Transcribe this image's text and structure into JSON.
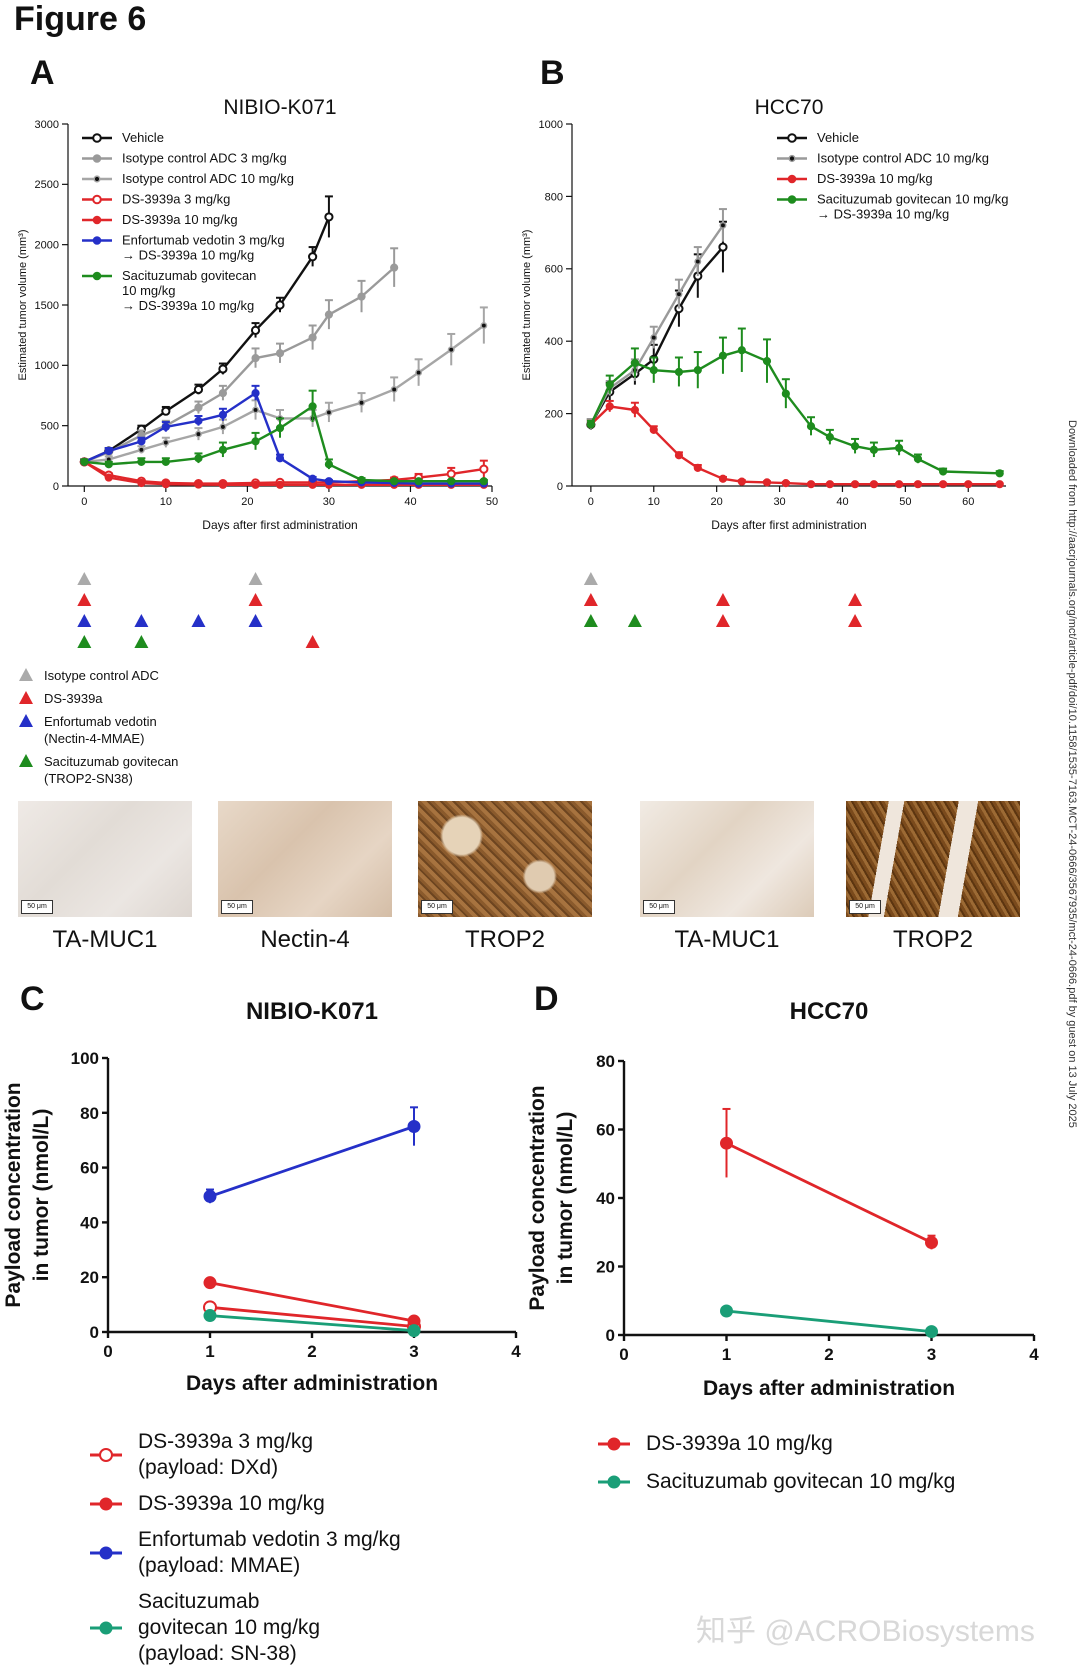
{
  "figure_title": "Figure 6",
  "panel_labels": {
    "a": "A",
    "b": "B",
    "c": "C",
    "d": "D"
  },
  "chart_data": [
    {
      "id": "A",
      "type": "line",
      "title": "NIBIO-K071",
      "xlabel": "Days after first administration",
      "ylabel": "Estimated tumor volume (mm³)",
      "xlim": [
        -2,
        50
      ],
      "ylim": [
        0,
        3000
      ],
      "xticks": [
        0,
        10,
        20,
        30,
        40,
        50
      ],
      "yticks": [
        0,
        500,
        1000,
        1500,
        2000,
        2500,
        3000
      ],
      "series": [
        {
          "name": "Vehicle",
          "color": "#111111",
          "marker": "open",
          "x": [
            0,
            3,
            7,
            10,
            14,
            17,
            21,
            24,
            28,
            30
          ],
          "y": [
            200,
            290,
            470,
            620,
            800,
            970,
            1290,
            1500,
            1900,
            2230
          ],
          "err": [
            20,
            25,
            30,
            35,
            40,
            45,
            60,
            60,
            80,
            170
          ]
        },
        {
          "name": "Isotype control ADC 3 mg/kg",
          "color": "#9a9a9a",
          "marker": "filled",
          "x": [
            0,
            3,
            7,
            10,
            14,
            17,
            21,
            24,
            28,
            30,
            34,
            38
          ],
          "y": [
            200,
            280,
            420,
            500,
            650,
            770,
            1060,
            1100,
            1230,
            1420,
            1570,
            1810
          ],
          "err": [
            20,
            25,
            40,
            40,
            50,
            60,
            80,
            80,
            100,
            120,
            130,
            160
          ]
        },
        {
          "name": "Isotype control ADC 10 mg/kg",
          "color": "#a6a6a6",
          "marker": "dot",
          "x": [
            0,
            3,
            7,
            10,
            14,
            17,
            21,
            24,
            28,
            30,
            34,
            38,
            41,
            45,
            49
          ],
          "y": [
            200,
            220,
            300,
            360,
            430,
            490,
            630,
            560,
            560,
            610,
            690,
            800,
            940,
            1130,
            1330
          ],
          "err": [
            20,
            25,
            30,
            40,
            50,
            60,
            80,
            70,
            70,
            80,
            80,
            100,
            110,
            130,
            150
          ]
        },
        {
          "name": "DS-3939a 3 mg/kg",
          "color": "#e0262a",
          "marker": "open",
          "x": [
            0,
            3,
            7,
            10,
            14,
            17,
            21,
            24,
            28,
            30,
            34,
            38,
            41,
            45,
            49
          ],
          "y": [
            200,
            90,
            40,
            25,
            20,
            20,
            25,
            30,
            30,
            30,
            40,
            50,
            70,
            100,
            140
          ],
          "err": [
            20,
            15,
            10,
            8,
            8,
            8,
            10,
            10,
            10,
            10,
            15,
            20,
            30,
            50,
            70
          ]
        },
        {
          "name": "DS-3939a 10 mg/kg",
          "color": "#e0262a",
          "marker": "filled",
          "x": [
            0,
            3,
            7,
            10,
            14,
            17,
            21,
            24,
            28,
            30,
            34,
            38,
            41,
            45,
            49
          ],
          "y": [
            200,
            70,
            25,
            15,
            12,
            10,
            10,
            10,
            10,
            10,
            10,
            10,
            10,
            10,
            10
          ],
          "err": [
            20,
            12,
            8,
            5,
            5,
            5,
            5,
            5,
            5,
            5,
            5,
            5,
            5,
            5,
            5
          ]
        },
        {
          "name": "Enfortumab vedotin 3 mg/kg → DS-3939a 10 mg/kg",
          "color": "#2530c8",
          "marker": "filled",
          "x": [
            0,
            3,
            7,
            10,
            14,
            17,
            21,
            24,
            28,
            30,
            34,
            38,
            41,
            45,
            49
          ],
          "y": [
            200,
            290,
            370,
            490,
            540,
            590,
            770,
            230,
            60,
            40,
            30,
            25,
            20,
            20,
            20
          ],
          "err": [
            20,
            25,
            30,
            40,
            40,
            50,
            60,
            30,
            15,
            10,
            8,
            8,
            8,
            8,
            8
          ]
        },
        {
          "name": "Sacituzumab govitecan 10 mg/kg → DS-3939a 10 mg/kg",
          "color": "#1e8c1e",
          "marker": "filled",
          "x": [
            0,
            3,
            7,
            10,
            14,
            17,
            21,
            24,
            28,
            30,
            34,
            38,
            41,
            45,
            49
          ],
          "y": [
            200,
            180,
            200,
            200,
            230,
            300,
            370,
            480,
            660,
            180,
            50,
            40,
            40,
            40,
            40
          ],
          "err": [
            20,
            20,
            30,
            30,
            40,
            60,
            70,
            80,
            130,
            40,
            15,
            10,
            10,
            10,
            10
          ]
        }
      ],
      "legend": [
        {
          "text": "Vehicle",
          "color": "#111111",
          "marker": "open"
        },
        {
          "text": "Isotype control ADC 3 mg/kg",
          "color": "#9a9a9a",
          "marker": "filled"
        },
        {
          "text": "Isotype control ADC 10 mg/kg",
          "color": "#a6a6a6",
          "marker": "dot"
        },
        {
          "text": "DS-3939a 3 mg/kg",
          "color": "#e0262a",
          "marker": "open"
        },
        {
          "text": "DS-3939a 10 mg/kg",
          "color": "#e0262a",
          "marker": "filled"
        },
        {
          "text": "Enfortumab vedotin 3 mg/kg",
          "text2": "→ DS-3939a 10 mg/kg",
          "color": "#2530c8",
          "marker": "filled"
        },
        {
          "text": "Sacituzumab govitecan",
          "text2": "10 mg/kg",
          "text3": "→ DS-3939a 10 mg/kg",
          "color": "#1e8c1e",
          "marker": "filled"
        }
      ],
      "dosing_schedule": [
        {
          "agent": "Isotype control ADC",
          "color": "#aaaaaa",
          "days": [
            0,
            21
          ]
        },
        {
          "agent": "DS-3939a",
          "color": "#e0262a",
          "days": [
            0,
            21
          ]
        },
        {
          "agent": "Enfortumab vedotin",
          "color": "#2530c8",
          "days": [
            0,
            7,
            14,
            21
          ]
        },
        {
          "agent": "Sacituzumab govitecan",
          "color": "#1e8c1e",
          "days": [
            0,
            7
          ]
        },
        {
          "agent": "DS-3939a (after SG)",
          "color": "#e0262a",
          "days": [
            28
          ]
        }
      ]
    },
    {
      "id": "B",
      "type": "line",
      "title": "HCC70",
      "xlabel": "Days after first administration",
      "ylabel": "Estimated tumor volume (mm³)",
      "xlim": [
        -3,
        66
      ],
      "ylim": [
        0,
        1000
      ],
      "xticks": [
        0,
        10,
        20,
        30,
        40,
        50,
        60
      ],
      "yticks": [
        0,
        200,
        400,
        600,
        800,
        1000
      ],
      "series": [
        {
          "name": "Vehicle",
          "color": "#111111",
          "marker": "open",
          "x": [
            0,
            3,
            7,
            10,
            14,
            17,
            21
          ],
          "y": [
            170,
            260,
            310,
            350,
            490,
            580,
            660
          ],
          "err": [
            15,
            25,
            30,
            40,
            50,
            60,
            70
          ]
        },
        {
          "name": "Isotype control ADC 10 mg/kg",
          "color": "#9a9a9a",
          "marker": "dot",
          "x": [
            0,
            3,
            7,
            10,
            14,
            17,
            21
          ],
          "y": [
            170,
            270,
            320,
            410,
            530,
            620,
            720
          ],
          "err": [
            15,
            20,
            30,
            30,
            40,
            40,
            45
          ]
        },
        {
          "name": "DS-3939a 10 mg/kg",
          "color": "#e0262a",
          "marker": "filled",
          "x": [
            0,
            3,
            7,
            10,
            14,
            17,
            21,
            24,
            28,
            31,
            35,
            38,
            42,
            45,
            49,
            52,
            56,
            60,
            65
          ],
          "y": [
            170,
            220,
            210,
            155,
            85,
            50,
            20,
            12,
            10,
            8,
            5,
            5,
            5,
            5,
            5,
            5,
            5,
            5,
            5
          ],
          "err": [
            10,
            15,
            20,
            10,
            8,
            8,
            5,
            4,
            3,
            3,
            2,
            2,
            2,
            2,
            2,
            2,
            2,
            2,
            2
          ]
        },
        {
          "name": "Sacituzumab govitecan 10 mg/kg → DS-3939a 10 mg/kg",
          "color": "#1e8c1e",
          "marker": "filled",
          "x": [
            0,
            3,
            7,
            10,
            14,
            17,
            21,
            24,
            28,
            31,
            35,
            38,
            42,
            45,
            49,
            52,
            56,
            65
          ],
          "y": [
            170,
            280,
            340,
            320,
            315,
            320,
            360,
            375,
            345,
            255,
            165,
            135,
            110,
            100,
            105,
            75,
            40,
            35
          ],
          "err": [
            10,
            25,
            40,
            35,
            40,
            50,
            50,
            60,
            60,
            40,
            25,
            20,
            20,
            20,
            20,
            12,
            8,
            6
          ]
        }
      ],
      "legend": [
        {
          "text": "Vehicle",
          "color": "#111111",
          "marker": "open"
        },
        {
          "text": "Isotype control ADC 10 mg/kg",
          "color": "#9a9a9a",
          "marker": "dot"
        },
        {
          "text": "DS-3939a 10 mg/kg",
          "color": "#e0262a",
          "marker": "filled"
        },
        {
          "text": "Sacituzumab govitecan 10 mg/kg",
          "text2": "→ DS-3939a 10 mg/kg",
          "color": "#1e8c1e",
          "marker": "filled"
        }
      ],
      "dosing_schedule": [
        {
          "agent": "Isotype control ADC",
          "color": "#aaaaaa",
          "days": [
            0
          ]
        },
        {
          "agent": "DS-3939a",
          "color": "#e0262a",
          "days": [
            0,
            21,
            42
          ]
        },
        {
          "agent": "Sacituzumab govitecan",
          "color": "#1e8c1e",
          "days": [
            0,
            7
          ]
        },
        {
          "agent": "DS-3939a (after SG)",
          "color": "#e0262a",
          "days": [
            21,
            42
          ]
        }
      ]
    },
    {
      "id": "C",
      "type": "line",
      "title": "NIBIO-K071",
      "xlabel": "Days after administration",
      "ylabel": "Payload concentration",
      "ylabel2": "in tumor (nmol/L)",
      "xlim": [
        0,
        4
      ],
      "ylim": [
        0,
        100
      ],
      "xticks": [
        0,
        1,
        2,
        3,
        4
      ],
      "yticks": [
        0,
        20,
        40,
        60,
        80,
        100
      ],
      "series": [
        {
          "name": "DS-3939a 3 mg/kg (payload: DXd)",
          "color": "#e0262a",
          "marker": "open",
          "x": [
            1,
            3
          ],
          "y": [
            9,
            2
          ],
          "err": [
            1,
            0.5
          ]
        },
        {
          "name": "DS-3939a 10 mg/kg",
          "color": "#e0262a",
          "marker": "filled",
          "x": [
            1,
            3
          ],
          "y": [
            18,
            4
          ],
          "err": [
            1,
            0.5
          ]
        },
        {
          "name": "Enfortumab vedotin 3 mg/kg (payload: MMAE)",
          "color": "#2530c8",
          "marker": "filled",
          "x": [
            1,
            3
          ],
          "y": [
            49.5,
            75
          ],
          "err": [
            2.5,
            7
          ]
        },
        {
          "name": "Sacituzumab govitecan 10 mg/kg (payload: SN-38)",
          "color": "#1a9e77",
          "marker": "filled",
          "x": [
            1,
            3
          ],
          "y": [
            6,
            0.5
          ],
          "err": [
            0.5,
            0.2
          ]
        }
      ],
      "legend": [
        {
          "lines": [
            "DS-3939a 3 mg/kg",
            "(payload: DXd)"
          ],
          "color": "#e0262a",
          "marker": "open"
        },
        {
          "lines": [
            "DS-3939a 10 mg/kg"
          ],
          "color": "#e0262a",
          "marker": "filled"
        },
        {
          "lines": [
            "Enfortumab vedotin 3 mg/kg",
            "(payload: MMAE)"
          ],
          "color": "#2530c8",
          "marker": "filled"
        },
        {
          "lines": [
            "Sacituzumab",
            "govitecan 10 mg/kg",
            "(payload: SN-38)"
          ],
          "color": "#1a9e77",
          "marker": "filled"
        }
      ]
    },
    {
      "id": "D",
      "type": "line",
      "title": "HCC70",
      "xlabel": "Days after administration",
      "ylabel": "Payload concentration",
      "ylabel2": "in tumor (nmol/L)",
      "xlim": [
        0,
        4
      ],
      "ylim": [
        0,
        80
      ],
      "xticks": [
        0,
        1,
        2,
        3,
        4
      ],
      "yticks": [
        0,
        20,
        40,
        60,
        80
      ],
      "series": [
        {
          "name": "DS-3939a 10 mg/kg",
          "color": "#e0262a",
          "marker": "filled",
          "x": [
            1,
            3
          ],
          "y": [
            56,
            27
          ],
          "err": [
            10,
            2
          ]
        },
        {
          "name": "Sacituzumab govitecan 10 mg/kg",
          "color": "#1a9e77",
          "marker": "filled",
          "x": [
            1,
            3
          ],
          "y": [
            7,
            1
          ],
          "err": [
            0.5,
            0.3
          ]
        }
      ],
      "legend": [
        {
          "lines": [
            "DS-3939a 10 mg/kg"
          ],
          "color": "#e0262a",
          "marker": "filled"
        },
        {
          "lines": [
            "Sacituzumab govitecan 10 mg/kg"
          ],
          "color": "#1a9e77",
          "marker": "filled"
        }
      ]
    }
  ],
  "schedule_legend": [
    {
      "lines": [
        "Isotype control ADC"
      ],
      "color": "#aaaaaa"
    },
    {
      "lines": [
        "DS-3939a"
      ],
      "color": "#e0262a"
    },
    {
      "lines": [
        "Enfortumab vedotin",
        "(Nectin-4-MMAE)"
      ],
      "color": "#2530c8"
    },
    {
      "lines": [
        "Sacituzumab govitecan",
        "(TROP2-SN38)"
      ],
      "color": "#1e8c1e"
    }
  ],
  "ihc_images": [
    {
      "label": "TA-MUC1",
      "scale": "50 μm",
      "stain": "light"
    },
    {
      "label": "Nectin-4",
      "scale": "50 μm",
      "stain": "light"
    },
    {
      "label": "TROP2",
      "scale": "50 μm",
      "stain": "strong"
    },
    {
      "label": "TA-MUC1",
      "scale": "50 μm",
      "stain": "light"
    },
    {
      "label": "TROP2",
      "scale": "50 μm",
      "stain": "dense"
    }
  ],
  "side_note": "Downloaded from http://aacrjournals.org/mct/article-pdf/doi/10.1158/1535-7163.MCT-24-0666/3567935/mct-24-0666.pdf by guest on 13 July 2025",
  "watermark": "知乎 @ACROBiosystems"
}
